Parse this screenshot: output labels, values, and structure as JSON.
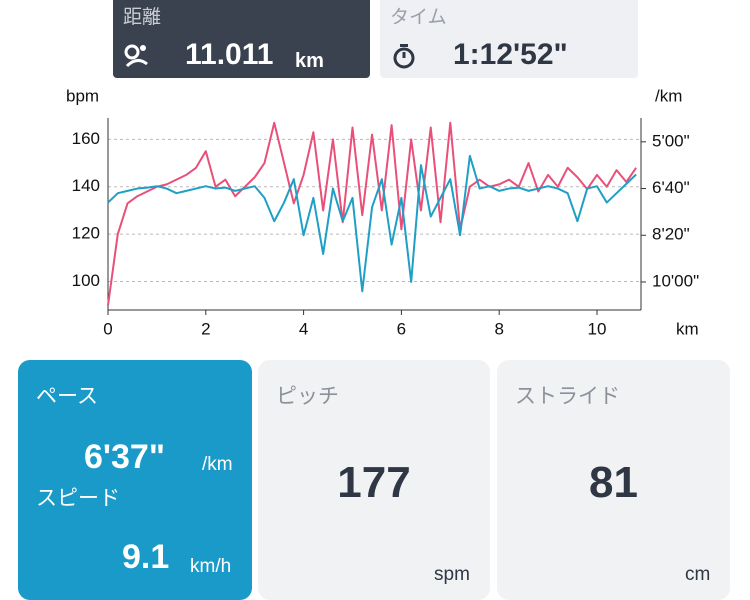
{
  "summary": [
    {
      "label": "距離",
      "value": "11.011",
      "unit": "km"
    },
    {
      "label": "タイム",
      "value": "1:12'52\""
    }
  ],
  "chart_data": {
    "type": "line",
    "y_label": "bpm",
    "y2_label": "/km",
    "x_label": "km",
    "x": [
      0,
      0.2,
      0.4,
      0.6,
      0.8,
      1,
      1.2,
      1.4,
      1.6,
      1.8,
      2,
      2.2,
      2.4,
      2.6,
      2.8,
      3,
      3.2,
      3.4,
      3.6,
      3.8,
      4,
      4.2,
      4.4,
      4.6,
      4.8,
      5,
      5.2,
      5.4,
      5.6,
      5.8,
      6,
      6.2,
      6.4,
      6.6,
      6.8,
      7,
      7.2,
      7.4,
      7.6,
      7.8,
      8,
      8.2,
      8.4,
      8.6,
      8.8,
      9,
      9.2,
      9.4,
      9.6,
      9.8,
      10,
      10.2,
      10.4,
      10.6,
      10.8
    ],
    "series": [
      {
        "name": "heart-rate",
        "color": "#e8507a",
        "values": [
          90,
          120,
          133,
          136,
          138,
          140,
          141,
          143,
          145,
          148,
          155,
          140,
          143,
          136,
          140,
          144,
          150,
          167,
          150,
          133,
          145,
          163,
          130,
          160,
          125,
          165,
          128,
          162,
          130,
          166,
          122,
          160,
          130,
          165,
          125,
          167,
          122,
          140,
          143,
          140,
          141,
          143,
          140,
          150,
          138,
          145,
          140,
          148,
          144,
          139,
          145,
          140,
          147,
          142,
          148
        ]
      },
      {
        "name": "pace",
        "color": "#1f9fc6",
        "axis": "y2",
        "values": [
          430,
          410,
          405,
          400,
          398,
          395,
          400,
          410,
          405,
          400,
          395,
          400,
          398,
          405,
          400,
          395,
          420,
          470,
          430,
          380,
          500,
          420,
          540,
          400,
          470,
          420,
          620,
          440,
          380,
          520,
          420,
          600,
          350,
          460,
          420,
          380,
          500,
          330,
          400,
          395,
          405,
          400,
          398,
          405,
          400,
          395,
          400,
          410,
          470,
          400,
          395,
          430,
          410,
          390,
          370
        ]
      }
    ],
    "xlim": [
      0,
      10.9
    ],
    "xticks": [
      0,
      2,
      4,
      6,
      8,
      10
    ],
    "ylim": [
      88,
      169
    ],
    "yticks": [
      100,
      120,
      140,
      160
    ],
    "y2lim": [
      660,
      249
    ],
    "y2ticks": [
      {
        "value": 300,
        "label": "5'00\""
      },
      {
        "value": 400,
        "label": "6'40\""
      },
      {
        "value": 500,
        "label": "8'20\""
      },
      {
        "value": 600,
        "label": "10'00\""
      }
    ],
    "grid": true
  },
  "metrics": {
    "pace": {
      "label": "ペース",
      "value": "6'37\"",
      "unit": "/km"
    },
    "speed": {
      "label": "スピード",
      "value": "9.1",
      "unit": "km/h"
    },
    "cadence": {
      "label": "ピッチ",
      "value": "177",
      "unit": "spm"
    },
    "stride": {
      "label": "ストライド",
      "value": "81",
      "unit": "cm"
    }
  }
}
